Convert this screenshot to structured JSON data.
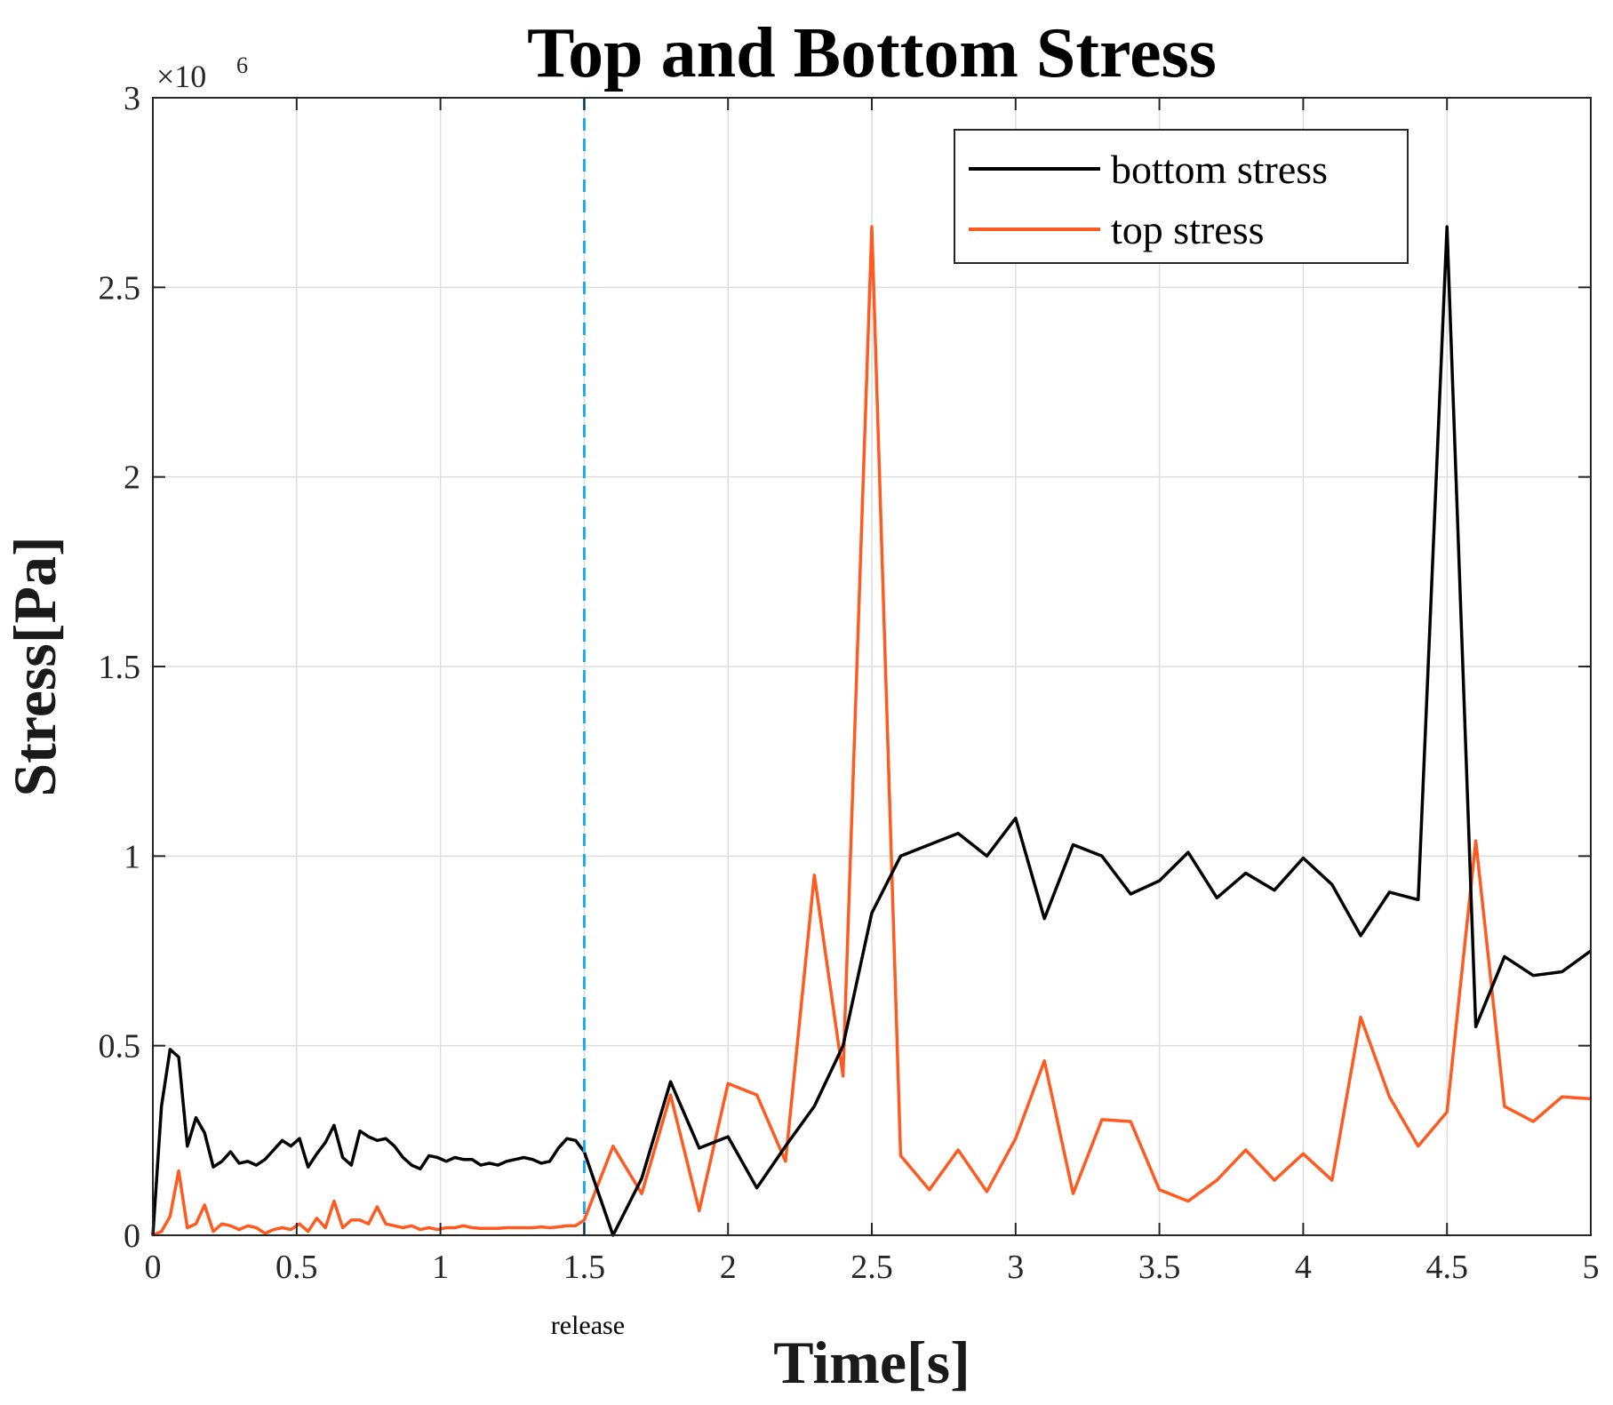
{
  "chart_data": {
    "type": "line",
    "title": "Top and Bottom Stress",
    "xlabel": "Time[s]",
    "ylabel": "Stress[Pa]",
    "xlim": [
      0,
      5
    ],
    "ylim": [
      0,
      3000000
    ],
    "y_exponent_prefix": "×10",
    "y_exponent_power": "6",
    "grid": true,
    "legend_position": "top-right",
    "x_ticks": [
      0,
      0.5,
      1,
      1.5,
      2,
      2.5,
      3,
      3.5,
      4,
      4.5,
      5
    ],
    "x_tick_labels": [
      "0",
      "0.5",
      "1",
      "1.5",
      "2",
      "2.5",
      "3",
      "3.5",
      "4",
      "4.5",
      "5"
    ],
    "y_ticks": [
      0,
      500000,
      1000000,
      1500000,
      2000000,
      2500000,
      3000000
    ],
    "y_tick_labels": [
      "0",
      "0.5",
      "1",
      "1.5",
      "2",
      "2.5",
      "3"
    ],
    "vline": {
      "x": 1.5,
      "label": "release",
      "color": "#1ca9e6"
    },
    "series": [
      {
        "name": "bottom stress",
        "color": "#000000",
        "x": [
          0,
          0.03,
          0.06,
          0.09,
          0.12,
          0.15,
          0.18,
          0.21,
          0.24,
          0.27,
          0.3,
          0.33,
          0.36,
          0.39,
          0.42,
          0.45,
          0.48,
          0.51,
          0.54,
          0.57,
          0.6,
          0.63,
          0.66,
          0.69,
          0.72,
          0.75,
          0.78,
          0.81,
          0.84,
          0.87,
          0.9,
          0.93,
          0.96,
          0.99,
          1.02,
          1.05,
          1.08,
          1.11,
          1.14,
          1.17,
          1.2,
          1.23,
          1.26,
          1.29,
          1.32,
          1.35,
          1.38,
          1.41,
          1.44,
          1.47,
          1.5,
          1.6,
          1.7,
          1.8,
          1.9,
          2.0,
          2.1,
          2.2,
          2.3,
          2.4,
          2.5,
          2.6,
          2.7,
          2.8,
          2.9,
          3.0,
          3.1,
          3.2,
          3.3,
          3.4,
          3.5,
          3.6,
          3.7,
          3.8,
          3.9,
          4.0,
          4.1,
          4.2,
          4.3,
          4.4,
          4.5,
          4.6,
          4.7,
          4.8,
          4.9,
          5.0
        ],
        "values": [
          0,
          340000,
          490000,
          470000,
          235000,
          310000,
          270000,
          180000,
          195000,
          220000,
          190000,
          195000,
          185000,
          200000,
          225000,
          250000,
          235000,
          255000,
          180000,
          215000,
          245000,
          290000,
          205000,
          185000,
          275000,
          260000,
          250000,
          255000,
          235000,
          205000,
          185000,
          175000,
          210000,
          205000,
          195000,
          205000,
          200000,
          200000,
          185000,
          190000,
          185000,
          195000,
          200000,
          205000,
          200000,
          190000,
          195000,
          230000,
          255000,
          250000,
          220000,
          0,
          150000,
          405000,
          230000,
          260000,
          125000,
          235000,
          340000,
          500000,
          850000,
          1000000,
          1030000,
          1060000,
          1000000,
          1100000,
          835000,
          1030000,
          1000000,
          900000,
          935000,
          1010000,
          890000,
          955000,
          910000,
          995000,
          925000,
          790000,
          905000,
          885000,
          2660000,
          550000,
          735000,
          685000,
          695000,
          750000
        ]
      },
      {
        "name": "top stress",
        "color": "#ff5a1f",
        "x": [
          0,
          0.03,
          0.06,
          0.09,
          0.12,
          0.15,
          0.18,
          0.21,
          0.24,
          0.27,
          0.3,
          0.33,
          0.36,
          0.39,
          0.42,
          0.45,
          0.48,
          0.51,
          0.54,
          0.57,
          0.6,
          0.63,
          0.66,
          0.69,
          0.72,
          0.75,
          0.78,
          0.81,
          0.84,
          0.87,
          0.9,
          0.93,
          0.96,
          0.99,
          1.02,
          1.05,
          1.08,
          1.11,
          1.14,
          1.17,
          1.2,
          1.23,
          1.26,
          1.29,
          1.32,
          1.35,
          1.38,
          1.41,
          1.44,
          1.47,
          1.5,
          1.6,
          1.7,
          1.8,
          1.9,
          2.0,
          2.1,
          2.2,
          2.3,
          2.4,
          2.5,
          2.6,
          2.7,
          2.8,
          2.9,
          3.0,
          3.1,
          3.2,
          3.3,
          3.4,
          3.5,
          3.6,
          3.7,
          3.8,
          3.9,
          4.0,
          4.1,
          4.2,
          4.3,
          4.4,
          4.5,
          4.6,
          4.7,
          4.8,
          4.9,
          5.0
        ],
        "values": [
          0,
          10000,
          50000,
          170000,
          20000,
          30000,
          80000,
          10000,
          30000,
          25000,
          15000,
          25000,
          20000,
          5000,
          15000,
          20000,
          15000,
          30000,
          10000,
          45000,
          20000,
          90000,
          20000,
          40000,
          40000,
          30000,
          75000,
          30000,
          25000,
          20000,
          25000,
          15000,
          20000,
          15000,
          20000,
          20000,
          25000,
          20000,
          18000,
          18000,
          18000,
          20000,
          20000,
          20000,
          20000,
          22000,
          20000,
          22000,
          25000,
          25000,
          40000,
          235000,
          110000,
          370000,
          65000,
          400000,
          370000,
          195000,
          950000,
          420000,
          2660000,
          210000,
          120000,
          225000,
          115000,
          255000,
          460000,
          110000,
          305000,
          300000,
          120000,
          90000,
          145000,
          225000,
          145000,
          215000,
          145000,
          575000,
          365000,
          235000,
          325000,
          1040000,
          340000,
          300000,
          365000,
          360000
        ]
      }
    ]
  }
}
